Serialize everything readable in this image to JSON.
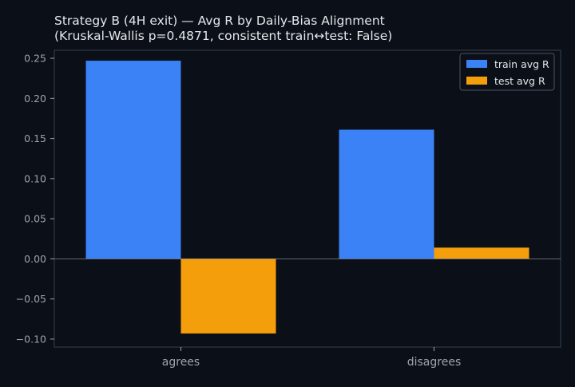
{
  "chart_data": {
    "type": "bar",
    "title_line1": "Strategy B (4H exit) — Avg R by Daily-Bias Alignment",
    "title_line2": "(Kruskal-Wallis p=0.4871, consistent train↔test: False)",
    "categories": [
      "agrees",
      "disagrees"
    ],
    "series": [
      {
        "name": "train avg R",
        "values": [
          0.247,
          0.161
        ],
        "color": "#3b82f6"
      },
      {
        "name": "test avg R",
        "values": [
          -0.093,
          0.014
        ],
        "color": "#f59e0b"
      }
    ],
    "ylim": [
      -0.11,
      0.26
    ],
    "yticks": [
      -0.1,
      -0.05,
      0.0,
      0.05,
      0.1,
      0.15,
      0.2,
      0.25
    ],
    "ytick_labels": [
      "−0.10",
      "−0.05",
      "0.00",
      "0.05",
      "0.10",
      "0.15",
      "0.20",
      "0.25"
    ],
    "legend_position": "top-right",
    "grid": false,
    "zero_line": true,
    "colors": {
      "background": "#0b0f17",
      "text": "#e5e7eb",
      "tick_text": "#9ca3af",
      "axis": "#374151"
    }
  }
}
